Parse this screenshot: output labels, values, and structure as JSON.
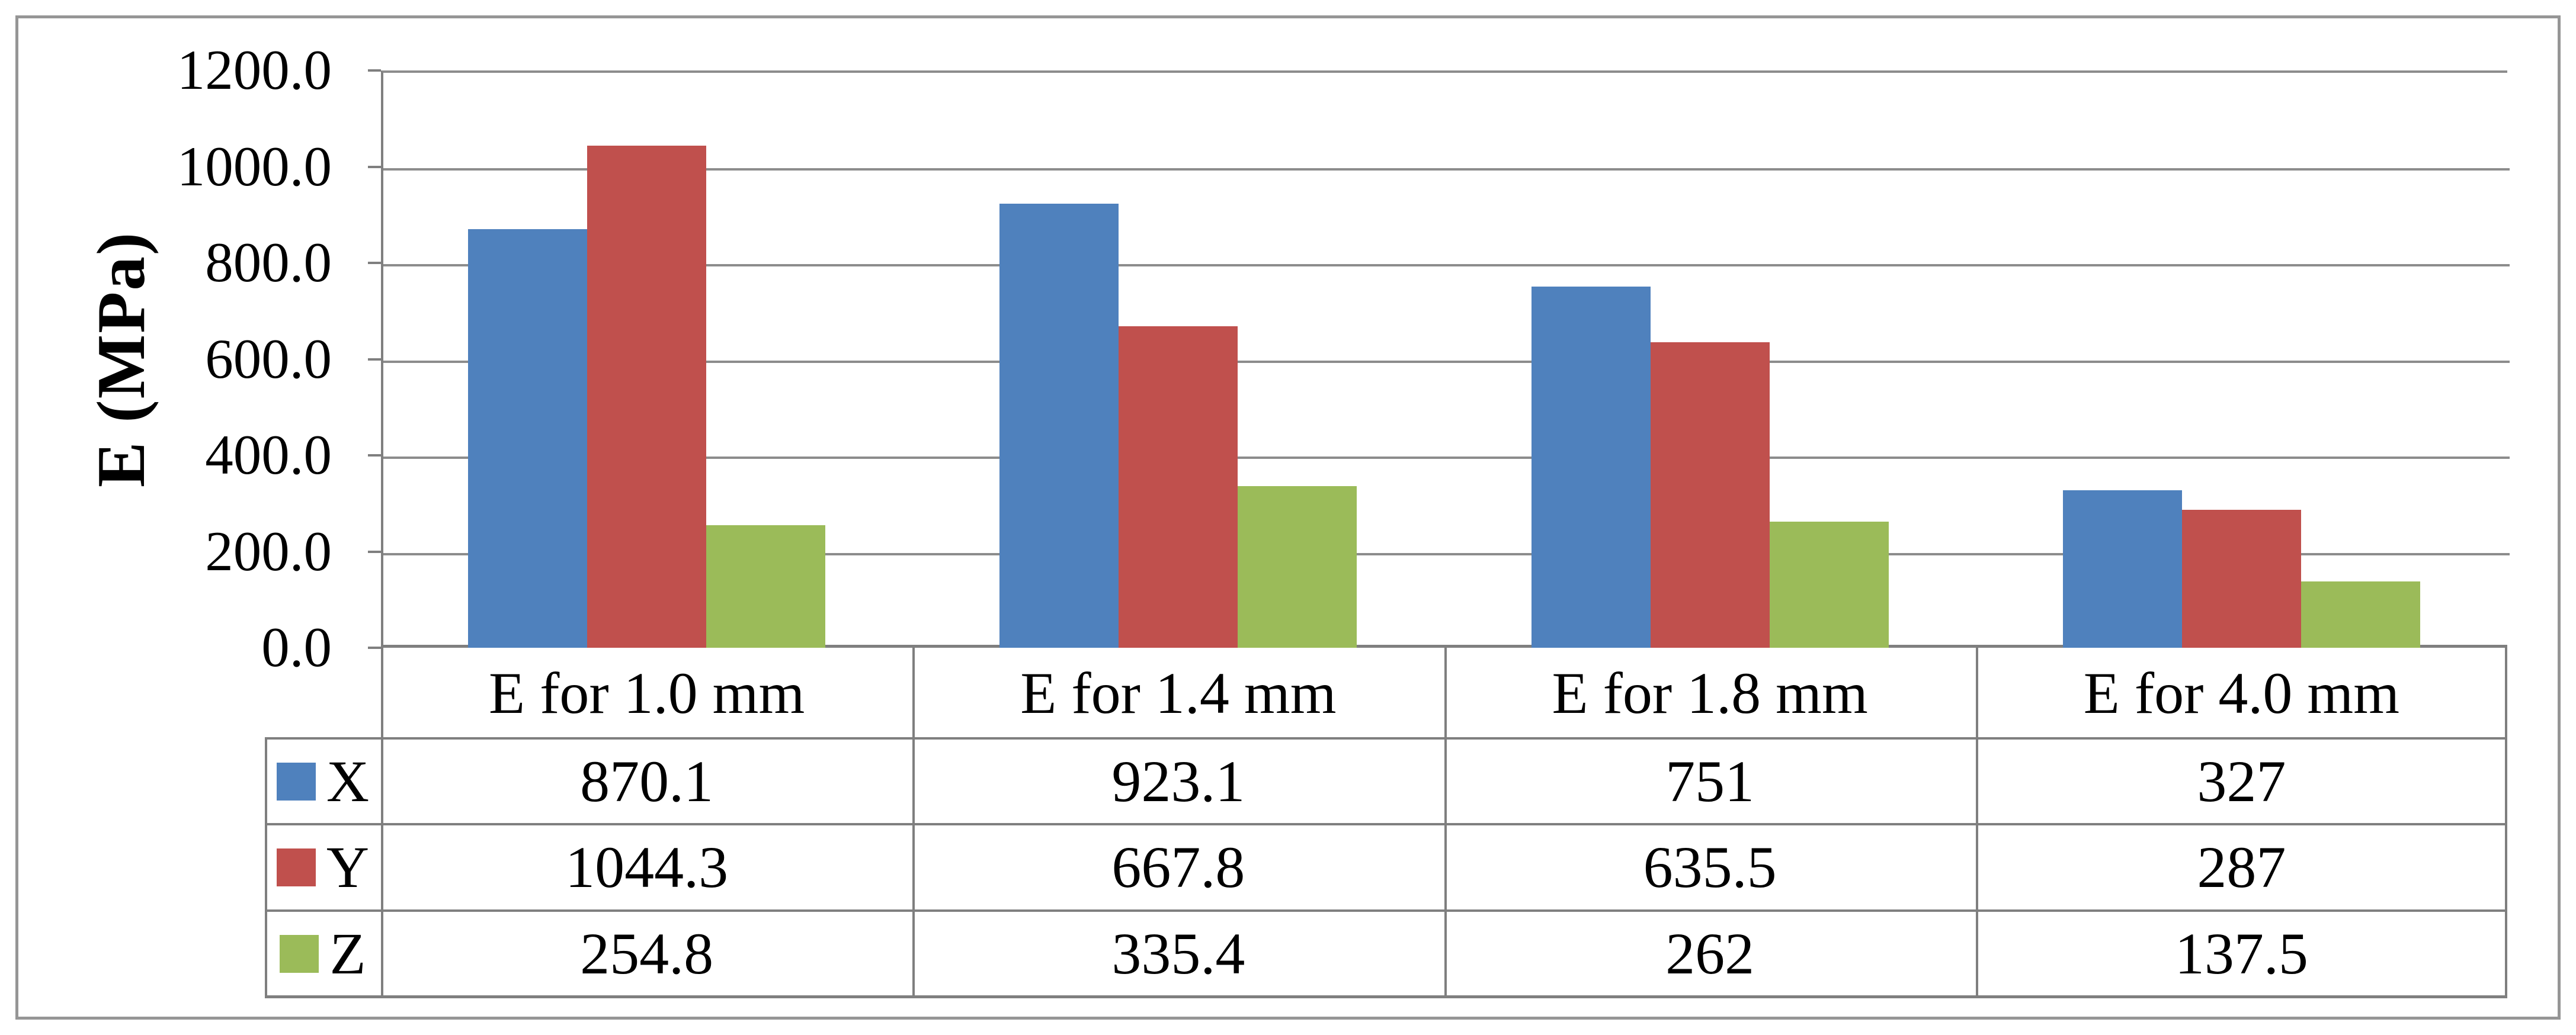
{
  "chart_data": {
    "type": "bar",
    "title": "",
    "ylabel": "E (MPa)",
    "xlabel": "",
    "ylim": [
      0,
      1200
    ],
    "ytick_step": 200,
    "ytick_labels": [
      "1200.0",
      "1000.0",
      "800.0",
      "600.0",
      "400.0",
      "200.0",
      "0.0"
    ],
    "grid": true,
    "legend_position": "table-left",
    "categories": [
      "E for 1.0 mm",
      "E for 1.4 mm",
      "E for 1.8 mm",
      "E for 4.0 mm"
    ],
    "series": [
      {
        "name": "X",
        "color": "#4f81bd",
        "values": [
          870.1,
          923.1,
          751,
          327
        ]
      },
      {
        "name": "Y",
        "color": "#c0504d",
        "values": [
          1044.3,
          667.8,
          635.5,
          287
        ]
      },
      {
        "name": "Z",
        "color": "#9bbb59",
        "values": [
          254.8,
          335.4,
          262,
          137.5
        ]
      }
    ],
    "colors": {
      "grid_line": "#8c8c8c",
      "axis_line": "#7f7f7f",
      "table_border": "#7f7f7f",
      "figure_border": "#969696",
      "background": "#ffffff"
    }
  }
}
